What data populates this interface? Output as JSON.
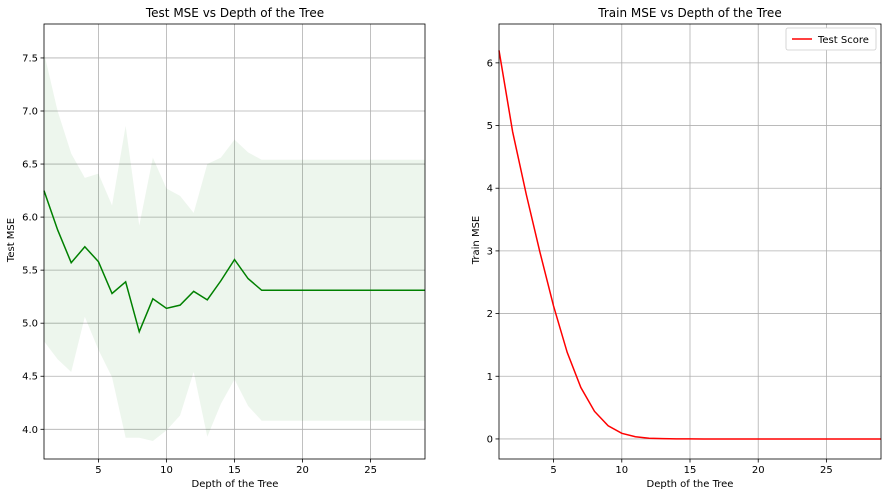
{
  "chart_data": [
    {
      "type": "line",
      "title": "Test MSE vs Depth of the Tree",
      "xlabel": "Depth of the Tree",
      "ylabel": "Test MSE",
      "xlim": [
        1,
        29
      ],
      "ylim": [
        3.72,
        7.82
      ],
      "xticks": [
        5,
        10,
        15,
        20,
        25
      ],
      "yticks": [
        4.0,
        4.5,
        5.0,
        5.5,
        6.0,
        6.5,
        7.0,
        7.5
      ],
      "grid": true,
      "colors": {
        "line": "#008000",
        "band": "#008000"
      },
      "x": [
        1,
        2,
        3,
        4,
        5,
        6,
        7,
        8,
        9,
        10,
        11,
        12,
        13,
        14,
        15,
        16,
        17,
        18,
        19,
        20,
        21,
        22,
        23,
        24,
        25,
        26,
        27,
        28,
        29
      ],
      "mean": [
        6.25,
        5.88,
        5.57,
        5.72,
        5.58,
        5.28,
        5.39,
        4.92,
        5.23,
        5.14,
        5.17,
        5.3,
        5.22,
        5.4,
        5.6,
        5.42,
        5.31,
        5.31,
        5.31,
        5.31,
        5.31,
        5.31,
        5.31,
        5.31,
        5.31,
        5.31,
        5.31,
        5.31,
        5.31
      ],
      "upper": [
        7.55,
        7.0,
        6.6,
        6.37,
        6.41,
        6.11,
        6.86,
        5.92,
        6.56,
        6.27,
        6.2,
        6.04,
        6.5,
        6.56,
        6.73,
        6.61,
        6.54,
        6.54,
        6.54,
        6.54,
        6.54,
        6.54,
        6.54,
        6.54,
        6.54,
        6.54,
        6.54,
        6.54,
        6.54
      ],
      "lower": [
        4.83,
        4.66,
        4.54,
        5.06,
        4.75,
        4.49,
        3.92,
        3.92,
        3.89,
        3.99,
        4.13,
        4.54,
        3.93,
        4.24,
        4.47,
        4.22,
        4.08,
        4.08,
        4.08,
        4.08,
        4.08,
        4.08,
        4.08,
        4.08,
        4.08,
        4.08,
        4.08,
        4.08,
        4.08
      ]
    },
    {
      "type": "line",
      "title": "Train MSE vs Depth of the Tree",
      "xlabel": "Depth of the Tree",
      "ylabel": "Train MSE",
      "xlim": [
        1,
        29
      ],
      "ylim": [
        -0.32,
        6.62
      ],
      "xticks": [
        5,
        10,
        15,
        20,
        25
      ],
      "yticks": [
        0,
        1,
        2,
        3,
        4,
        5,
        6
      ],
      "grid": true,
      "legend": {
        "position": "top-right",
        "entries": [
          "Test Score"
        ]
      },
      "colors": {
        "line": "#ff0000"
      },
      "x": [
        1,
        2,
        3,
        4,
        5,
        6,
        7,
        8,
        9,
        10,
        11,
        12,
        13,
        14,
        15,
        16,
        17,
        18,
        19,
        20,
        21,
        22,
        23,
        24,
        25,
        26,
        27,
        28,
        29
      ],
      "series": [
        {
          "name": "Test Score",
          "values": [
            6.2,
            4.9,
            3.9,
            2.98,
            2.12,
            1.38,
            0.82,
            0.44,
            0.21,
            0.09,
            0.035,
            0.012,
            0.005,
            0.002,
            0.001,
            0,
            0,
            0,
            0,
            0,
            0,
            0,
            0,
            0,
            0,
            0,
            0,
            0,
            0
          ]
        }
      ]
    }
  ]
}
